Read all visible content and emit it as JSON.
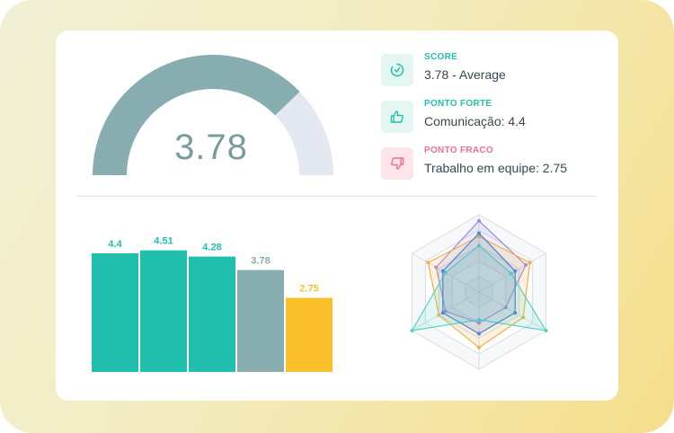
{
  "colors": {
    "teal": "#21bfad",
    "gray_teal": "#87adb0",
    "yellow": "#fbbf2c",
    "gauge_track": "#e4e9f1",
    "strength_red": "#ef6f8f"
  },
  "gauge": {
    "value": 3.78,
    "max": 5,
    "display": "3.78"
  },
  "stats": [
    {
      "icon": "gauge-icon",
      "label": "SCORE",
      "value": "3.78 - Average",
      "label_color": "#21bfad",
      "bg": "#e3f6f2"
    },
    {
      "icon": "thumbs-up-icon",
      "label": "PONTO FORTE",
      "value": "Comunicação: 4.4",
      "label_color": "#21bfad",
      "bg": "#e3f6f2"
    },
    {
      "icon": "thumbs-down-icon",
      "label": "PONTO FRACO",
      "value": "Trabalho em equipe: 2.75",
      "label_color": "#ef6f8f",
      "bg": "#fde5ea"
    }
  ],
  "chart_data": [
    {
      "type": "bar",
      "values": [
        4.4,
        4.51,
        4.28,
        3.78,
        2.75
      ],
      "value_labels": [
        "4.4",
        "4.51",
        "4.28",
        "3.78",
        "2.75"
      ],
      "bar_colors": [
        "#21bfad",
        "#21bfad",
        "#21bfad",
        "#87adb0",
        "#fbbf2c"
      ],
      "ylim": [
        0,
        5
      ]
    },
    {
      "type": "radar",
      "axes_count": 6,
      "rmax": 5,
      "series": [
        {
          "color": "#9c8ce0",
          "values": [
            4.6,
            3.5,
            2.0,
            2.0,
            2.5,
            3.2
          ]
        },
        {
          "color": "#f0b04a",
          "values": [
            3.6,
            3.8,
            3.3,
            3.6,
            3.0,
            3.8
          ]
        },
        {
          "color": "#4fd6c6",
          "values": [
            3.0,
            2.4,
            5.0,
            1.8,
            5.0,
            2.5
          ]
        },
        {
          "color": "#4a88d8",
          "values": [
            3.8,
            2.7,
            2.7,
            2.7,
            2.7,
            2.7
          ]
        }
      ]
    }
  ]
}
